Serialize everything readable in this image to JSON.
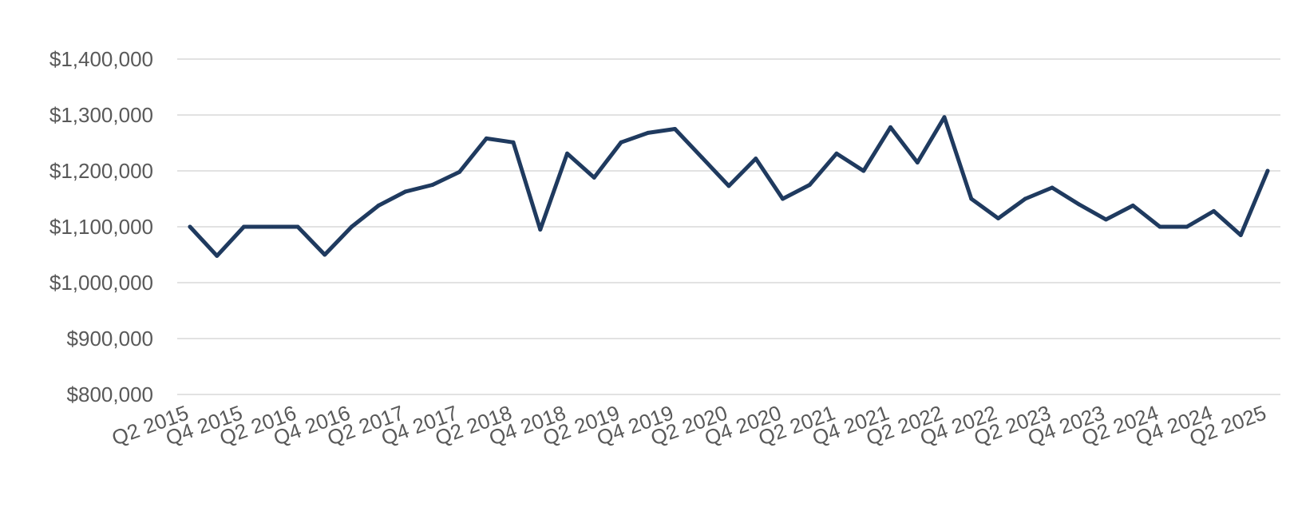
{
  "chart_data": {
    "type": "line",
    "title": "",
    "xlabel": "",
    "ylabel": "",
    "ylim": [
      800000,
      1400000
    ],
    "y_ticks": [
      {
        "value": 800000,
        "label": "$800,000"
      },
      {
        "value": 900000,
        "label": "$900,000"
      },
      {
        "value": 1000000,
        "label": "$1,000,000"
      },
      {
        "value": 1100000,
        "label": "$1,100,000"
      },
      {
        "value": 1200000,
        "label": "$1,200,000"
      },
      {
        "value": 1300000,
        "label": "$1,300,000"
      },
      {
        "value": 1400000,
        "label": "$1,400,000"
      }
    ],
    "x_tick_labels": [
      "Q2 2015",
      "Q4 2015",
      "Q2 2016",
      "Q4 2016",
      "Q2 2017",
      "Q4 2017",
      "Q2 2018",
      "Q4 2018",
      "Q2 2019",
      "Q4 2019",
      "Q2 2020",
      "Q4 2020",
      "Q2 2021",
      "Q4 2021",
      "Q2 2022",
      "Q4 2022",
      "Q2 2023",
      "Q4 2023",
      "Q2 2024",
      "Q4 2024",
      "Q2 2025"
    ],
    "categories": [
      "Q2 2015",
      "Q3 2015",
      "Q4 2015",
      "Q1 2016",
      "Q2 2016",
      "Q3 2016",
      "Q4 2016",
      "Q1 2017",
      "Q2 2017",
      "Q3 2017",
      "Q4 2017",
      "Q1 2018",
      "Q2 2018",
      "Q3 2018",
      "Q4 2018",
      "Q1 2019",
      "Q2 2019",
      "Q3 2019",
      "Q4 2019",
      "Q1 2020",
      "Q2 2020",
      "Q3 2020",
      "Q4 2020",
      "Q1 2021",
      "Q2 2021",
      "Q3 2021",
      "Q4 2021",
      "Q1 2022",
      "Q2 2022",
      "Q3 2022",
      "Q4 2022",
      "Q1 2023",
      "Q2 2023",
      "Q3 2023",
      "Q4 2023",
      "Q1 2024",
      "Q2 2024",
      "Q3 2024",
      "Q4 2024",
      "Q1 2025",
      "Q2 2025"
    ],
    "series": [
      {
        "color": "#1f3a5f",
        "values": [
          1100000,
          1048000,
          1100000,
          1100000,
          1100000,
          1050000,
          1100000,
          1138000,
          1163000,
          1175000,
          1198000,
          1258000,
          1251000,
          1095000,
          1231000,
          1188000,
          1251000,
          1268000,
          1275000,
          1224000,
          1173000,
          1222000,
          1150000,
          1175000,
          1231000,
          1200000,
          1278000,
          1215000,
          1296000,
          1150000,
          1115000,
          1150000,
          1170000,
          1140000,
          1113000,
          1138000,
          1100000,
          1100000,
          1128000,
          1085000,
          1200000
        ]
      }
    ],
    "grid": true,
    "legend": "none"
  }
}
